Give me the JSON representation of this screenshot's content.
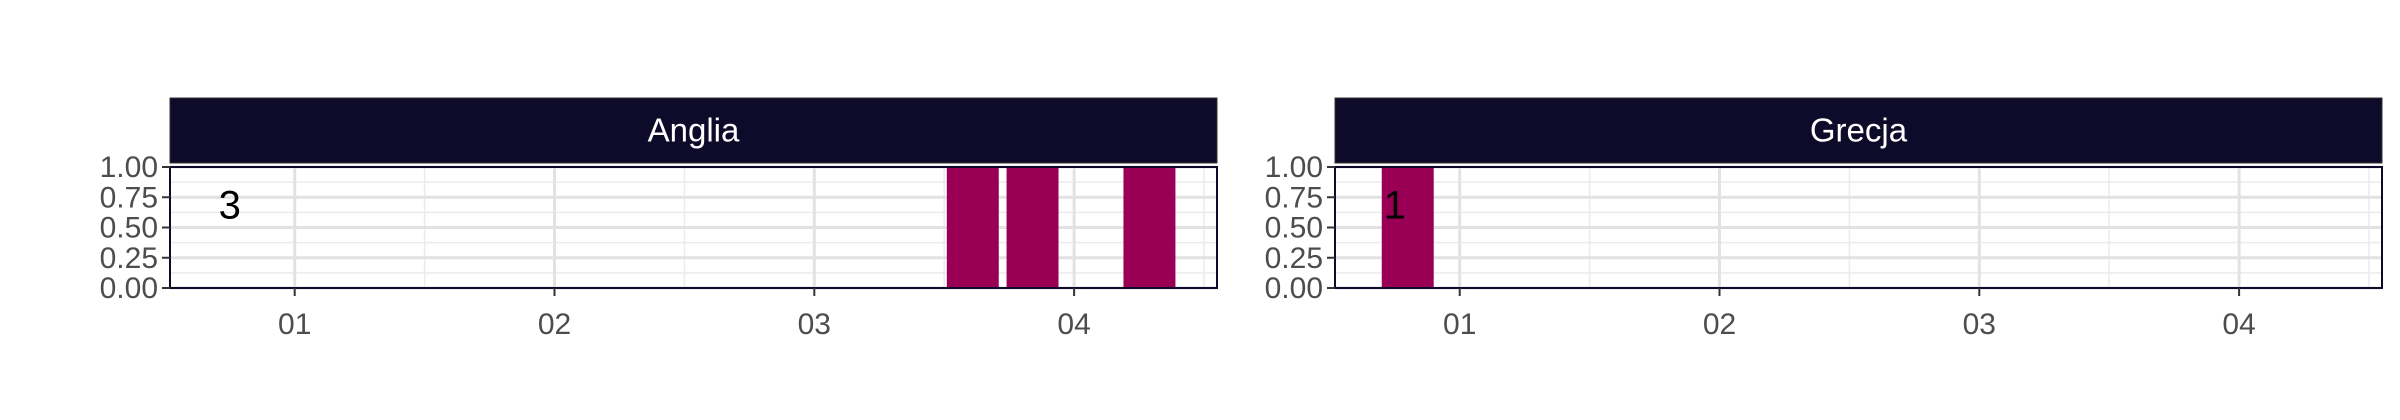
{
  "chart_data": {
    "type": "bar",
    "facet": true,
    "x_tick_labels": [
      "01",
      "02",
      "03",
      "04"
    ],
    "y_tick_labels": [
      "0.00",
      "0.25",
      "0.50",
      "0.75",
      "1.00"
    ],
    "ylim": [
      0,
      1
    ],
    "grid": true,
    "bar_color": "#990055",
    "strip_color": "#0d0a2a",
    "panels": [
      {
        "strip_label": "Anglia",
        "count_label": "3",
        "xlim": [
          0.52,
          4.55
        ],
        "bars": [
          {
            "x": 3.61,
            "width": 0.2,
            "value": 1
          },
          {
            "x": 3.84,
            "width": 0.2,
            "value": 1
          },
          {
            "x": 4.29,
            "width": 0.2,
            "value": 1
          }
        ],
        "count_label_pos": [
          0.75,
          0.7
        ]
      },
      {
        "strip_label": "Grecja",
        "count_label": "1",
        "xlim": [
          0.52,
          4.55
        ],
        "bars": [
          {
            "x": 0.8,
            "width": 0.2,
            "value": 1
          }
        ],
        "count_label_pos": [
          0.75,
          0.7
        ]
      }
    ]
  }
}
